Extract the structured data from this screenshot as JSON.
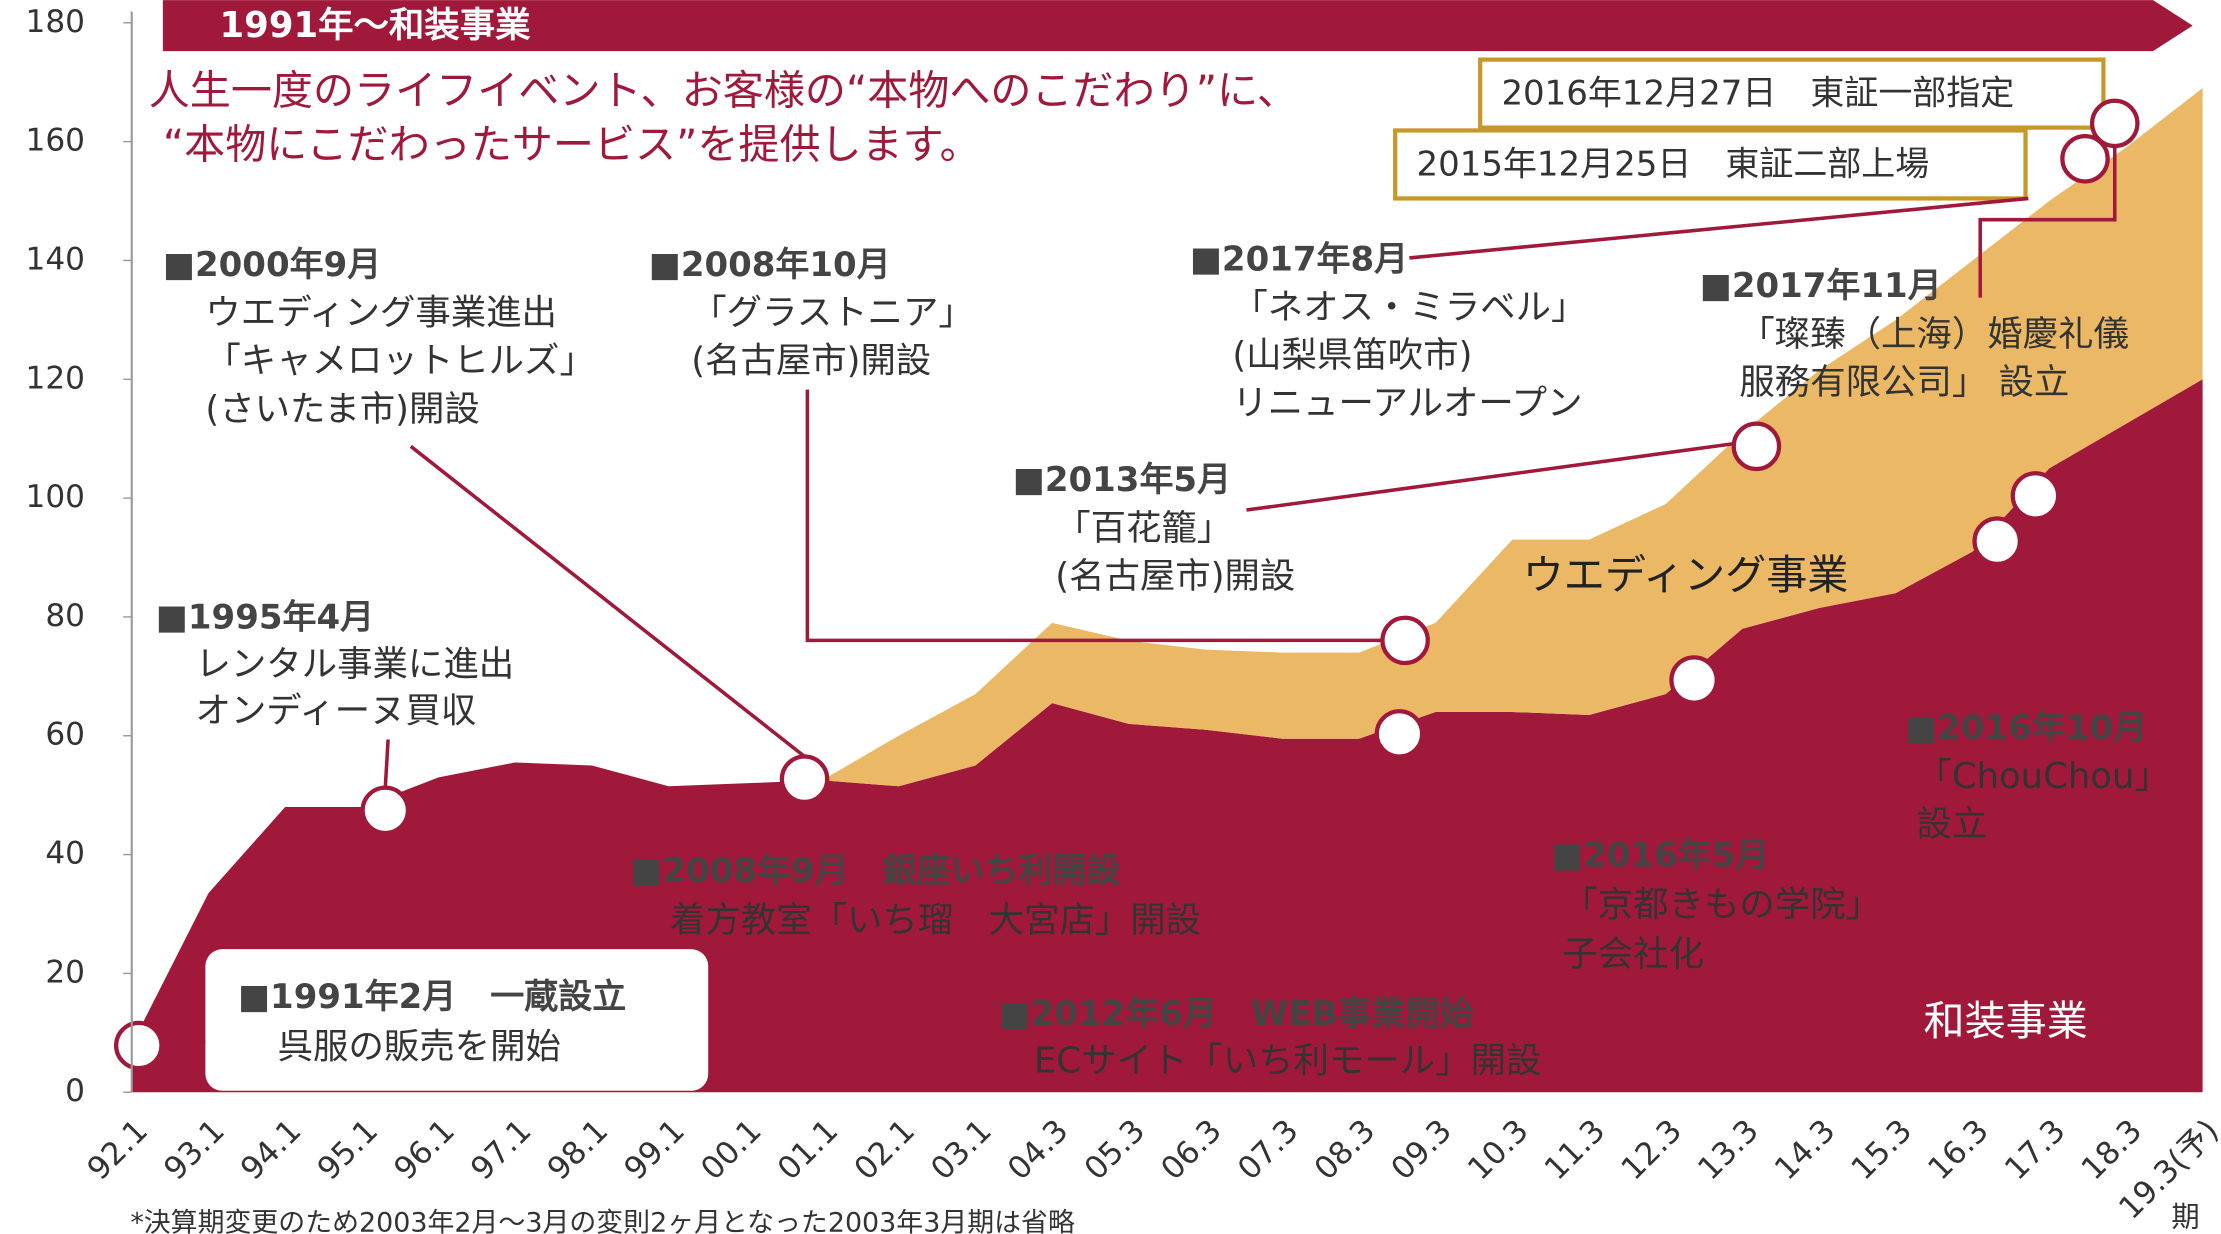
{
  "chart_data": {
    "type": "stacked-area",
    "banner": "1991年～和装事業",
    "headline": [
      "人生一度のライフイベント、お客様の“本物へのこだわり”に、",
      "“本物にこだわったサービス”を提供します。"
    ],
    "categories": [
      "92.1",
      "93.1",
      "94.1",
      "95.1",
      "96.1",
      "97.1",
      "98.1",
      "99.1",
      "00.1",
      "01.1",
      "02.1",
      "03.1",
      "04.3",
      "05.3",
      "06.3",
      "07.3",
      "08.3",
      "09.3",
      "10.3",
      "11.3",
      "12.3",
      "13.3",
      "14.3",
      "15.3",
      "16.3",
      "17.3",
      "18.3",
      "19.3(予)"
    ],
    "x_unit": "期",
    "series": [
      {
        "name": "和装事業",
        "color": "#a0193a",
        "values": [
          8,
          33.5,
          48,
          48,
          53,
          55.5,
          55,
          51.5,
          52,
          52.5,
          51.5,
          55,
          65.5,
          62,
          61,
          59.5,
          59.5,
          64,
          64,
          63.5,
          67,
          78,
          81.5,
          84,
          91,
          105,
          112.5,
          120
        ]
      },
      {
        "name": "ウエディング事業",
        "color": "#ebb866",
        "values": [
          null,
          null,
          null,
          null,
          null,
          null,
          null,
          null,
          null,
          0,
          8.5,
          12,
          13.5,
          14,
          13.5,
          14.5,
          14.5,
          15,
          29,
          29.5,
          32,
          33,
          40,
          46,
          49,
          45,
          46.5,
          49
        ]
      }
    ],
    "ylim": [
      0,
      180
    ],
    "yticks": [
      0,
      20,
      40,
      60,
      80,
      100,
      120,
      140,
      160,
      180
    ],
    "milestones": [
      "2016年12月27日　東証一部指定",
      "2015年12月25日　東証二部上場"
    ],
    "annotations": [
      {
        "lines": [
          "■1991年2月　一蔵設立",
          "呉服の販売を開始"
        ]
      },
      {
        "lines": [
          "■1995年4月",
          "レンタル事業に進出",
          "オンディーヌ買収"
        ]
      },
      {
        "lines": [
          "■2000年9月",
          "ウエディング事業進出",
          "「キャメロットヒルズ」",
          "(さいたま市)開設"
        ]
      },
      {
        "lines": [
          "■2008年10月",
          "「グラストニア」",
          "(名古屋市)開設"
        ]
      },
      {
        "lines": [
          "■2013年5月",
          "「百花籠」",
          "(名古屋市)開設"
        ]
      },
      {
        "lines": [
          "■2017年8月",
          "「ネオス・ミラベル」",
          "(山梨県笛吹市)",
          "リニューアルオープン"
        ]
      },
      {
        "lines": [
          "■2017年11月",
          "「璨臻（上海）婚慶礼儀",
          "服務有限公司」 設立"
        ]
      },
      {
        "lines": [
          "■2008年9月　銀座いち利開設",
          "着方教室「いち瑠　大宮店」開設"
        ]
      },
      {
        "lines": [
          "■2012年6月　WEB事業開始",
          "ECサイト「いち利モール」開設"
        ]
      },
      {
        "lines": [
          "■2016年5月",
          "「京都きもの学院」",
          "子会社化"
        ]
      },
      {
        "lines": [
          "■2016年10月",
          "「ChouChou」",
          "設立"
        ]
      }
    ],
    "footnote": "*決算期変更のため2003年2月～3月の変則2ヶ月となった2003年3月期は省略"
  }
}
